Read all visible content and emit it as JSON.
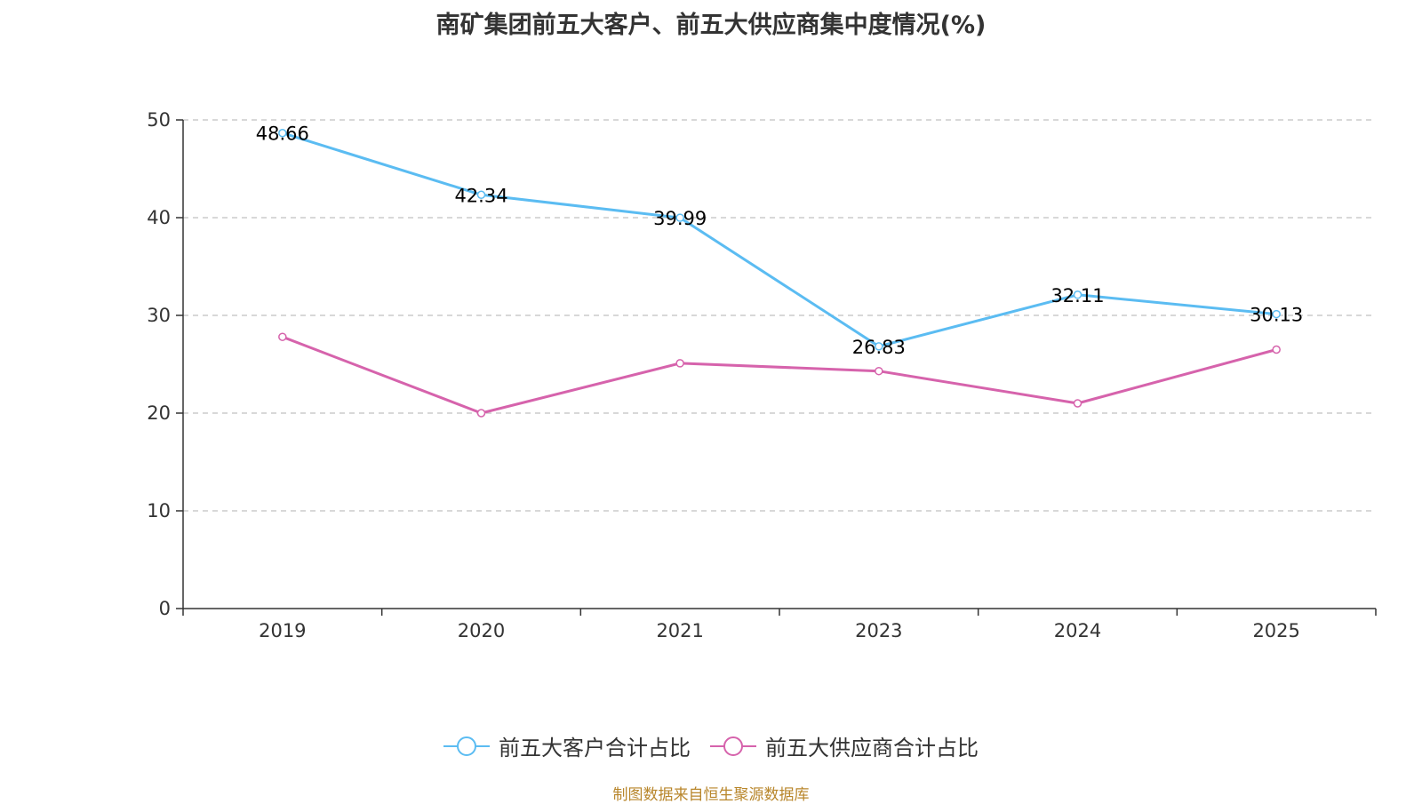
{
  "chart_data": {
    "type": "line",
    "title": "南矿集团前五大客户、前五大供应商集中度情况(%)",
    "categories": [
      "2019",
      "2020",
      "2021",
      "2023",
      "2024",
      "2025"
    ],
    "ylim": [
      0,
      50
    ],
    "yticks": [
      0,
      10,
      20,
      30,
      40,
      50
    ],
    "grid": true,
    "legend_position": "bottom",
    "series": [
      {
        "name": "前五大客户合计占比",
        "color": "#5bbcf2",
        "values": [
          48.66,
          42.34,
          39.99,
          26.83,
          32.11,
          30.13
        ],
        "data_labels": [
          "48.66",
          "42.34",
          "39.99",
          "26.83",
          "32.11",
          "30.13"
        ]
      },
      {
        "name": "前五大供应商合计占比",
        "color": "#d663ac",
        "values": [
          27.8,
          20.0,
          25.1,
          24.3,
          21.0,
          26.5
        ]
      }
    ]
  },
  "legend": {
    "customers": "前五大客户合计占比",
    "suppliers": "前五大供应商合计占比"
  },
  "source": "制图数据来自恒生聚源数据库"
}
